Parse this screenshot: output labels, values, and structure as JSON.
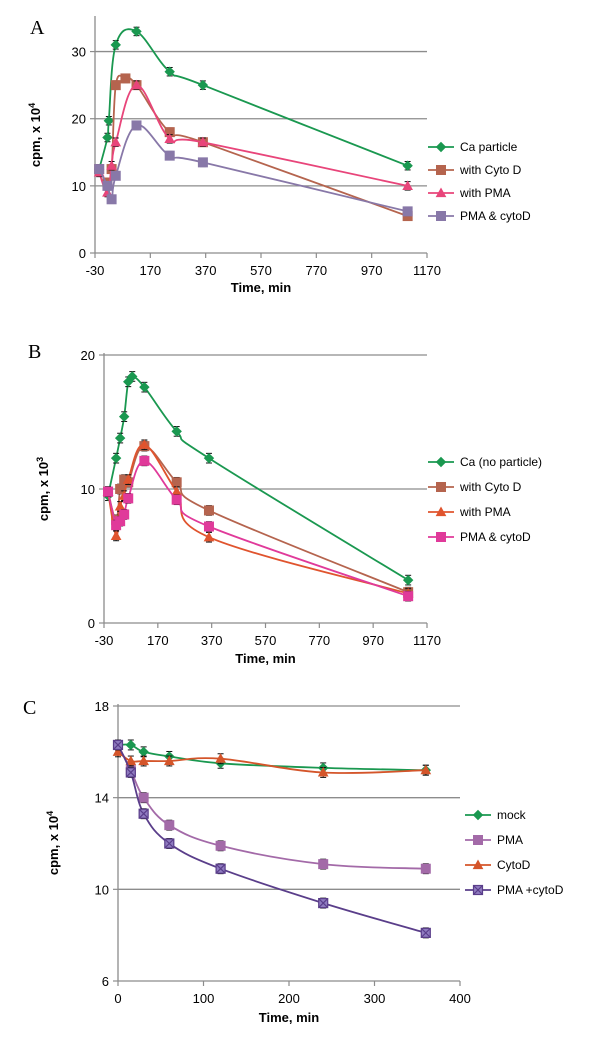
{
  "chart_data": [
    {
      "panel_label": "A",
      "type": "line",
      "xlabel": "Time, min",
      "ylabel": "cpm, x 10",
      "ylabel_exp": "4",
      "xlim": [
        -30,
        1170
      ],
      "ylim": [
        0,
        35
      ],
      "xticks": [
        -30,
        170,
        370,
        570,
        770,
        970,
        1170
      ],
      "yticks": [
        0,
        10,
        20,
        30
      ],
      "gridlines": [
        10,
        20,
        30
      ],
      "legend_position": "right",
      "series": [
        {
          "name": "Ca particle",
          "color": "#1a9850",
          "marker": "diamond",
          "x": [
            -15,
            15,
            20,
            45,
            120,
            240,
            360,
            1100
          ],
          "y": [
            12.5,
            17.2,
            19.7,
            31,
            33,
            27,
            25,
            13
          ]
        },
        {
          "name": "with Cyto D",
          "color": "#b5644e",
          "marker": "square",
          "x": [
            -15,
            15,
            30,
            45,
            80,
            120,
            240,
            360,
            1100
          ],
          "y": [
            12.5,
            10.5,
            12.5,
            25,
            26,
            25,
            18,
            16.5,
            5.5
          ]
        },
        {
          "name": "with PMA",
          "color": "#e8457a",
          "marker": "triangle",
          "x": [
            -15,
            15,
            30,
            45,
            120,
            240,
            360,
            1100
          ],
          "y": [
            12,
            9,
            13,
            16.5,
            25,
            17,
            16.5,
            10
          ]
        },
        {
          "name": "PMA & cytoD",
          "color": "#8878a8",
          "marker": "square",
          "x": [
            -15,
            15,
            30,
            45,
            120,
            240,
            360,
            1100
          ],
          "y": [
            12.5,
            10,
            8,
            11.5,
            19,
            14.5,
            13.5,
            6.2
          ]
        }
      ]
    },
    {
      "panel_label": "B",
      "type": "line",
      "xlabel": "Time, min",
      "ylabel": "cpm, x 10",
      "ylabel_exp": "3",
      "xlim": [
        -30,
        1170
      ],
      "ylim": [
        0,
        20
      ],
      "xticks": [
        -30,
        170,
        370,
        570,
        770,
        970,
        1170
      ],
      "yticks": [
        0,
        10,
        20
      ],
      "gridlines": [
        10,
        20
      ],
      "legend_position": "right",
      "series": [
        {
          "name": "Ca (no particle)",
          "color": "#1a9850",
          "marker": "diamond",
          "x": [
            -15,
            15,
            30,
            45,
            60,
            75,
            120,
            240,
            360,
            1100
          ],
          "y": [
            9.5,
            12.3,
            13.8,
            15.4,
            18,
            18.4,
            17.6,
            14.3,
            12.3,
            3.2
          ]
        },
        {
          "name": "with Cyto D",
          "color": "#b5644e",
          "marker": "square",
          "x": [
            -15,
            15,
            30,
            45,
            60,
            120,
            240,
            360,
            1100
          ],
          "y": [
            9.8,
            7.7,
            10,
            10.7,
            10.5,
            13.2,
            10.5,
            8.4,
            2.3
          ]
        },
        {
          "name": "with PMA",
          "color": "#e0542e",
          "marker": "triangle",
          "x": [
            -15,
            15,
            30,
            45,
            60,
            120,
            240,
            360,
            1100
          ],
          "y": [
            9.8,
            6.5,
            8.7,
            9.5,
            10.7,
            13.3,
            9.8,
            6.4,
            2.2
          ]
        },
        {
          "name": "PMA & cytoD",
          "color": "#e03a9a",
          "marker": "square",
          "x": [
            -15,
            15,
            30,
            45,
            60,
            120,
            240,
            360,
            1100
          ],
          "y": [
            9.8,
            7.3,
            7.6,
            8.1,
            9.3,
            12.1,
            9.2,
            7.2,
            2.0
          ]
        }
      ]
    },
    {
      "panel_label": "C",
      "type": "line",
      "xlabel": "Time, min",
      "ylabel": "cpm, x 10",
      "ylabel_exp": "4",
      "xlim": [
        0,
        400
      ],
      "ylim": [
        6,
        18
      ],
      "xticks": [
        0,
        100,
        200,
        300,
        400
      ],
      "yticks": [
        6,
        10,
        14,
        18
      ],
      "gridlines": [
        10,
        14,
        18
      ],
      "legend_position": "right",
      "series": [
        {
          "name": "mock",
          "color": "#1a9850",
          "marker": "diamond",
          "x": [
            0,
            15,
            30,
            60,
            120,
            240,
            360
          ],
          "y": [
            16.3,
            16.3,
            16.0,
            15.8,
            15.5,
            15.3,
            15.2
          ]
        },
        {
          "name": "PMA",
          "color": "#a36aa8",
          "marker": "square",
          "x": [
            0,
            15,
            30,
            60,
            120,
            240,
            360
          ],
          "y": [
            16.3,
            15.2,
            14.0,
            12.8,
            11.9,
            11.1,
            10.9
          ]
        },
        {
          "name": "CytoD",
          "color": "#d4552a",
          "marker": "triangle",
          "x": [
            0,
            15,
            30,
            60,
            120,
            240,
            360
          ],
          "y": [
            16.0,
            15.6,
            15.6,
            15.6,
            15.7,
            15.1,
            15.2
          ]
        },
        {
          "name": "PMA +cytoD",
          "color": "#5a3e8a",
          "marker": "xsquare",
          "x": [
            0,
            15,
            30,
            60,
            120,
            240,
            360
          ],
          "y": [
            16.3,
            15.1,
            13.3,
            12.0,
            10.9,
            9.4,
            8.1
          ]
        }
      ]
    }
  ]
}
